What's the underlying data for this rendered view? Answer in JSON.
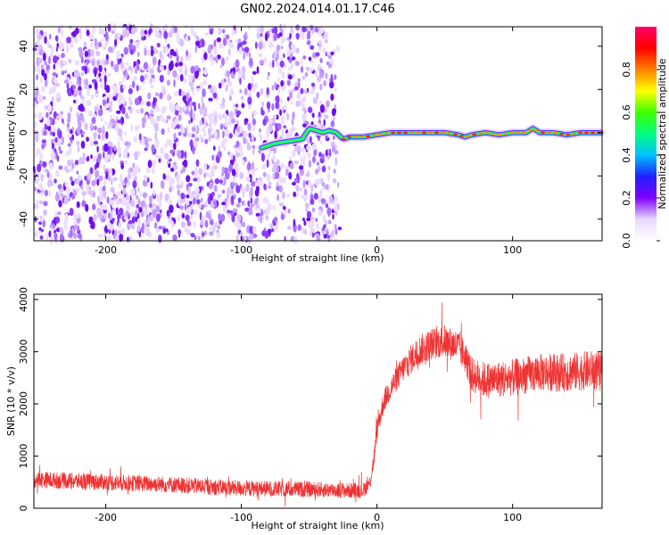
{
  "figure_title": "GN02.2024.014.01.17.C46",
  "chart_data": [
    {
      "type": "heatmap",
      "name": "spectrogram",
      "xlabel": "Height of straight line (km)",
      "ylabel": "Frequency (Hz)",
      "xlim": [
        -253,
        166
      ],
      "ylim": [
        -50,
        49
      ],
      "xticks": [
        -200,
        -100,
        0,
        100
      ],
      "yticks": [
        -40,
        -20,
        0,
        20,
        40
      ],
      "xtick_labels": [
        "-200",
        "-100",
        "0",
        "100"
      ],
      "ytick_labels": [
        "-40",
        "-20",
        "0",
        "20",
        "40"
      ],
      "noise_region_x": [
        -253,
        -30
      ],
      "signal_track": {
        "x": [
          -85,
          -75,
          -65,
          -55,
          -50,
          -45,
          -40,
          -35,
          -30,
          -25,
          -20,
          -10,
          0,
          10,
          20,
          30,
          40,
          50,
          60,
          65,
          70,
          80,
          90,
          100,
          110,
          115,
          120,
          130,
          140,
          150,
          160,
          166
        ],
        "y": [
          -7,
          -5,
          -4,
          -3,
          2,
          1,
          0,
          1,
          0,
          -3,
          -2,
          -2,
          -1,
          0,
          0,
          0,
          0,
          0,
          -1,
          -2,
          -1,
          0,
          -1,
          0,
          0,
          2,
          0,
          0,
          -1,
          0,
          0,
          0
        ]
      },
      "colorbar": {
        "label": "Normalized spectral amplitude",
        "ticks": [
          0.0,
          0.2,
          0.4,
          0.6,
          0.8
        ],
        "tick_labels": [
          "0.0",
          "0.2",
          "0.4",
          "0.6",
          "0.8"
        ],
        "range": [
          0,
          1
        ],
        "colors": [
          "#ffffff",
          "#e8d8ff",
          "#8000ff",
          "#2020ff",
          "#00c0ff",
          "#00ff80",
          "#40ff00",
          "#ffff00",
          "#ff8000",
          "#ff0000",
          "#ff0066"
        ]
      }
    },
    {
      "type": "line",
      "name": "snr",
      "xlabel": "Height of straight line (km)",
      "ylabel": "SNR (10 * v/v)",
      "xlim": [
        -253,
        166
      ],
      "ylim": [
        0,
        4100
      ],
      "xticks": [
        -200,
        -100,
        0,
        100
      ],
      "yticks": [
        0,
        1000,
        2000,
        3000,
        4000
      ],
      "xtick_labels": [
        "-200",
        "-100",
        "0",
        "100"
      ],
      "ytick_labels": [
        "0",
        "1000",
        "2000",
        "3000",
        "4000"
      ],
      "color": "#ee3333",
      "envelope": {
        "x": [
          -253,
          -200,
          -150,
          -100,
          -50,
          -20,
          -10,
          -5,
          -2,
          0,
          5,
          10,
          20,
          30,
          40,
          50,
          60,
          65,
          70,
          80,
          100,
          120,
          140,
          160,
          166
        ],
        "y": [
          550,
          500,
          450,
          380,
          360,
          340,
          350,
          500,
          1000,
          1500,
          2050,
          2300,
          2700,
          3000,
          3150,
          3200,
          3100,
          2900,
          2550,
          2450,
          2500,
          2600,
          2600,
          2650,
          2600
        ]
      },
      "noise_amplitude": {
        "x": [
          -253,
          -5,
          0,
          30,
          60,
          80,
          166
        ],
        "y": [
          160,
          150,
          200,
          300,
          320,
          350,
          380
        ]
      }
    }
  ]
}
